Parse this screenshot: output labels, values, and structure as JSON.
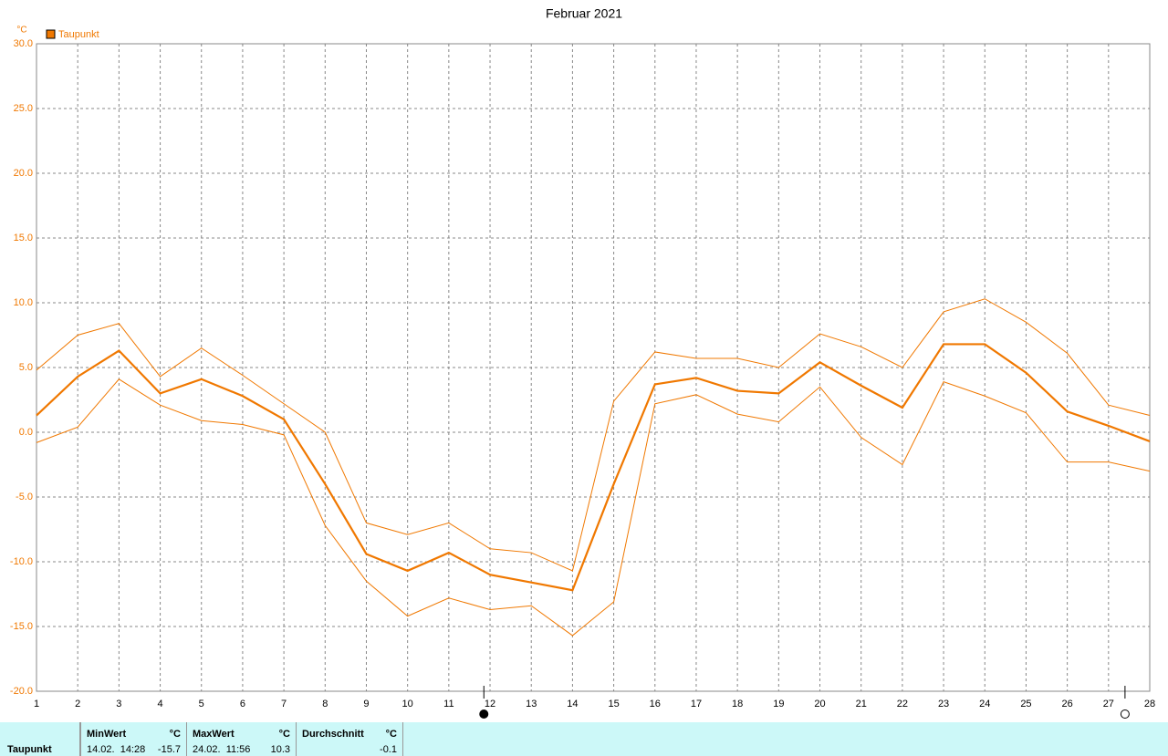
{
  "chart_data": {
    "type": "line",
    "title": "Februar 2021",
    "y_unit": "°C",
    "x": [
      1,
      2,
      3,
      4,
      5,
      6,
      7,
      8,
      9,
      10,
      11,
      12,
      13,
      14,
      15,
      16,
      17,
      18,
      19,
      20,
      21,
      22,
      23,
      24,
      25,
      26,
      27,
      28
    ],
    "xlim": [
      1,
      28
    ],
    "xticks": [
      1,
      2,
      3,
      4,
      5,
      6,
      7,
      8,
      9,
      10,
      11,
      12,
      13,
      14,
      15,
      16,
      17,
      18,
      19,
      20,
      21,
      22,
      23,
      24,
      25,
      26,
      27,
      28
    ],
    "ylim": [
      -20,
      30
    ],
    "yticks": [
      {
        "value": -20,
        "label": "-20.0"
      },
      {
        "value": -15,
        "label": "-15.0"
      },
      {
        "value": -10,
        "label": "-10.0"
      },
      {
        "value": -5,
        "label": "-5.0"
      },
      {
        "value": 0,
        "label": "0.0"
      },
      {
        "value": 5,
        "label": "5.0"
      },
      {
        "value": 10,
        "label": "10.0"
      },
      {
        "value": 15,
        "label": "15.0"
      },
      {
        "value": 20,
        "label": "20.0"
      },
      {
        "value": 25,
        "label": "25.0"
      },
      {
        "value": 30,
        "label": "30.0"
      }
    ],
    "grid": true,
    "color": "#f07800",
    "series": [
      {
        "name": "Taupunkt",
        "values": [
          1.3,
          4.3,
          6.3,
          3.0,
          4.1,
          2.8,
          1.0,
          -4.0,
          -9.4,
          -10.7,
          -9.3,
          -11.0,
          -11.6,
          -12.2,
          -4.0,
          3.7,
          4.2,
          3.2,
          3.0,
          5.4,
          3.6,
          1.9,
          6.8,
          6.8,
          4.6,
          1.6,
          0.5,
          -0.7
        ]
      },
      {
        "values": [
          4.8,
          7.5,
          8.4,
          4.3,
          6.5,
          4.4,
          2.2,
          0.0,
          -7.0,
          -7.9,
          -7.0,
          -9.0,
          -9.3,
          -10.7,
          2.4,
          6.2,
          5.7,
          5.7,
          5.0,
          7.6,
          6.6,
          5.0,
          9.3,
          10.3,
          8.5,
          6.1,
          2.1,
          1.3
        ]
      },
      {
        "values": [
          -0.8,
          0.4,
          4.1,
          2.1,
          0.9,
          0.6,
          -0.2,
          -7.2,
          -11.5,
          -14.2,
          -12.8,
          -13.7,
          -13.4,
          -15.7,
          -13.1,
          2.2,
          2.9,
          1.4,
          0.8,
          3.5,
          -0.4,
          -2.5,
          3.9,
          2.8,
          1.5,
          -2.3,
          -2.3,
          -3.0
        ]
      }
    ],
    "moon_phases": [
      {
        "x": 11.85,
        "phase": "new"
      },
      {
        "x": 27.4,
        "phase": "full"
      }
    ]
  },
  "stats_table": {
    "row_label": "Taupunkt",
    "columns": [
      {
        "header": "MinWert",
        "unit": "°C",
        "time": "14.02.  14:28",
        "value": -15.7
      },
      {
        "header": "MaxWert",
        "unit": "°C",
        "time": "24.02.  11:56",
        "value": 10.3
      },
      {
        "header": "Durchschnitt",
        "unit": "°C",
        "value": -0.1
      }
    ]
  }
}
